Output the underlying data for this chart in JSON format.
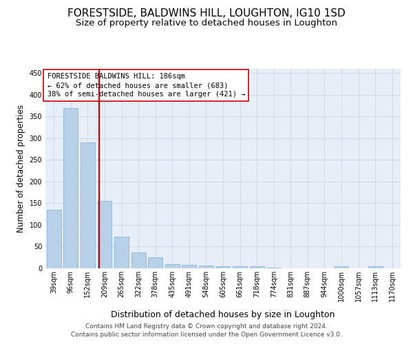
{
  "title": "FORESTSIDE, BALDWINS HILL, LOUGHTON, IG10 1SD",
  "subtitle": "Size of property relative to detached houses in Loughton",
  "xlabel": "Distribution of detached houses by size in Loughton",
  "ylabel": "Number of detached properties",
  "categories": [
    "39sqm",
    "96sqm",
    "152sqm",
    "209sqm",
    "265sqm",
    "322sqm",
    "378sqm",
    "435sqm",
    "491sqm",
    "548sqm",
    "605sqm",
    "661sqm",
    "718sqm",
    "774sqm",
    "831sqm",
    "887sqm",
    "944sqm",
    "1000sqm",
    "1057sqm",
    "1113sqm",
    "1170sqm"
  ],
  "values": [
    135,
    370,
    290,
    155,
    73,
    36,
    25,
    10,
    8,
    7,
    5,
    4,
    4,
    2,
    0,
    0,
    0,
    4,
    0,
    4,
    0
  ],
  "bar_color": "#b8d0e8",
  "bar_edgecolor": "#7aadd4",
  "vline_x": 2.67,
  "vline_color": "#cc0000",
  "annotation_line1": "FORESTSIDE BALDWINS HILL: 186sqm",
  "annotation_line2": "← 62% of detached houses are smaller (683)",
  "annotation_line3": "38% of semi-detached houses are larger (421) →",
  "annotation_box_color": "#ffffff",
  "annotation_box_edgecolor": "#cc0000",
  "ylim": [
    0,
    460
  ],
  "yticks": [
    0,
    50,
    100,
    150,
    200,
    250,
    300,
    350,
    400,
    450
  ],
  "grid_color": "#d0d8e8",
  "bg_color": "#e8eef8",
  "footer": "Contains HM Land Registry data © Crown copyright and database right 2024.\nContains public sector information licensed under the Open Government Licence v3.0.",
  "title_fontsize": 11,
  "subtitle_fontsize": 9.5,
  "xlabel_fontsize": 9,
  "ylabel_fontsize": 8.5,
  "tick_fontsize": 7,
  "annotation_fontsize": 7.5,
  "footer_fontsize": 6.5
}
